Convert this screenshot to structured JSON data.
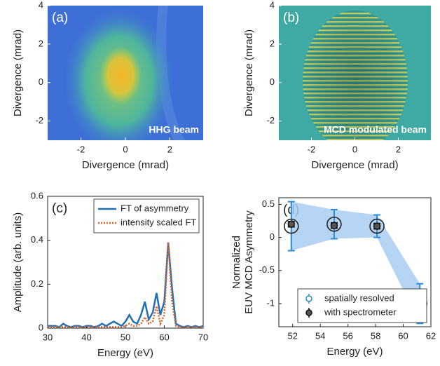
{
  "chart_data": [
    {
      "type": "image",
      "panel_label": "(a)",
      "annotation": "HHG beam",
      "xlabel": "Divergence (mrad)",
      "ylabel": "Divergence (mrad)",
      "xlim": [
        -3.5,
        3.5
      ],
      "ylim": [
        -3,
        4
      ],
      "xticks": [
        -2,
        0,
        2
      ],
      "yticks": [
        -2,
        0,
        2,
        4
      ]
    },
    {
      "type": "image",
      "panel_label": "(b)",
      "annotation": "MCD modulated beam",
      "xlabel": "Divergence (mrad)",
      "ylabel": "Divergence (mrad)",
      "xlim": [
        -3.5,
        3.5
      ],
      "ylim": [
        -3,
        4
      ],
      "xticks": [
        -2,
        0,
        2
      ],
      "yticks": [
        -2,
        0,
        2,
        4
      ]
    },
    {
      "type": "line",
      "panel_label": "(c)",
      "xlabel": "Energy (eV)",
      "ylabel": "Amplitude (arb. units)",
      "xlim": [
        30,
        70
      ],
      "ylim": [
        0,
        0.6
      ],
      "xticks": [
        30,
        40,
        50,
        60,
        70
      ],
      "yticks": [
        0,
        0.2,
        0.4,
        0.6
      ],
      "legend": "upper right",
      "x": [
        30,
        31,
        32,
        33,
        34,
        35,
        36,
        37,
        38,
        39,
        40,
        41,
        42,
        43,
        44,
        45,
        46,
        47,
        48,
        49,
        50,
        51,
        52,
        53,
        54,
        55,
        56,
        57,
        58,
        59,
        60,
        61,
        62,
        63,
        64,
        65,
        66,
        67,
        68,
        69,
        70
      ],
      "series": [
        {
          "name": "FT of asymmetry",
          "color": "#1f6fb5",
          "dash": "solid",
          "values": [
            0.01,
            0.01,
            0.01,
            0.005,
            0.02,
            0.01,
            0.005,
            0.01,
            0.01,
            0.005,
            0.01,
            0.01,
            0.005,
            0.01,
            0.02,
            0.01,
            0.02,
            0.03,
            0.02,
            0.01,
            0.03,
            0.06,
            0.03,
            0.02,
            0.06,
            0.12,
            0.04,
            0.07,
            0.16,
            0.06,
            0.12,
            0.39,
            0.18,
            0.02,
            0.01,
            0.005,
            0.01,
            0.005,
            0.01,
            0.005,
            0.01
          ]
        },
        {
          "name": "intensity scaled FT",
          "color": "#d9622b",
          "dash": "dotted",
          "values": [
            0.005,
            0.005,
            0.005,
            0.005,
            0.005,
            0.005,
            0.005,
            0.005,
            0.005,
            0.005,
            0.005,
            0.005,
            0.005,
            0.005,
            0.005,
            0.005,
            0.005,
            0.005,
            0.005,
            0.005,
            0.01,
            0.02,
            0.01,
            0.01,
            0.02,
            0.05,
            0.02,
            0.03,
            0.1,
            0.02,
            0.06,
            0.39,
            0.12,
            0.01,
            0.005,
            0.005,
            0.005,
            0.005,
            0.005,
            0.005,
            0.005
          ]
        }
      ]
    },
    {
      "type": "errorbar",
      "panel_label": "(d)",
      "xlabel": "Energy (eV)",
      "ylabel": [
        "Normalized",
        "EUV MCD Asymmetry"
      ],
      "xlim": [
        51,
        62
      ],
      "ylim": [
        -1.35,
        0.6
      ],
      "xticks": [
        52,
        54,
        56,
        58,
        60,
        62
      ],
      "yticks": [
        -1,
        -0.5,
        0,
        0.5
      ],
      "legend": "lower right",
      "x": [
        51.9,
        55,
        58.1,
        61.2
      ],
      "series": [
        {
          "name": "spatially resolved",
          "color": "#2a8ad4",
          "marker": "open",
          "band": true,
          "values": [
            0.17,
            0.2,
            0.17,
            -1.0
          ],
          "errors": [
            0.37,
            0.22,
            0.17,
            0.3
          ]
        },
        {
          "name": "with spectrometer",
          "color": "#111111",
          "marker": "filled",
          "band": false,
          "values": [
            0.2,
            0.18,
            0.17,
            -1.0
          ],
          "errors": [
            0.04,
            0.04,
            0.04,
            0.04
          ]
        }
      ]
    }
  ]
}
